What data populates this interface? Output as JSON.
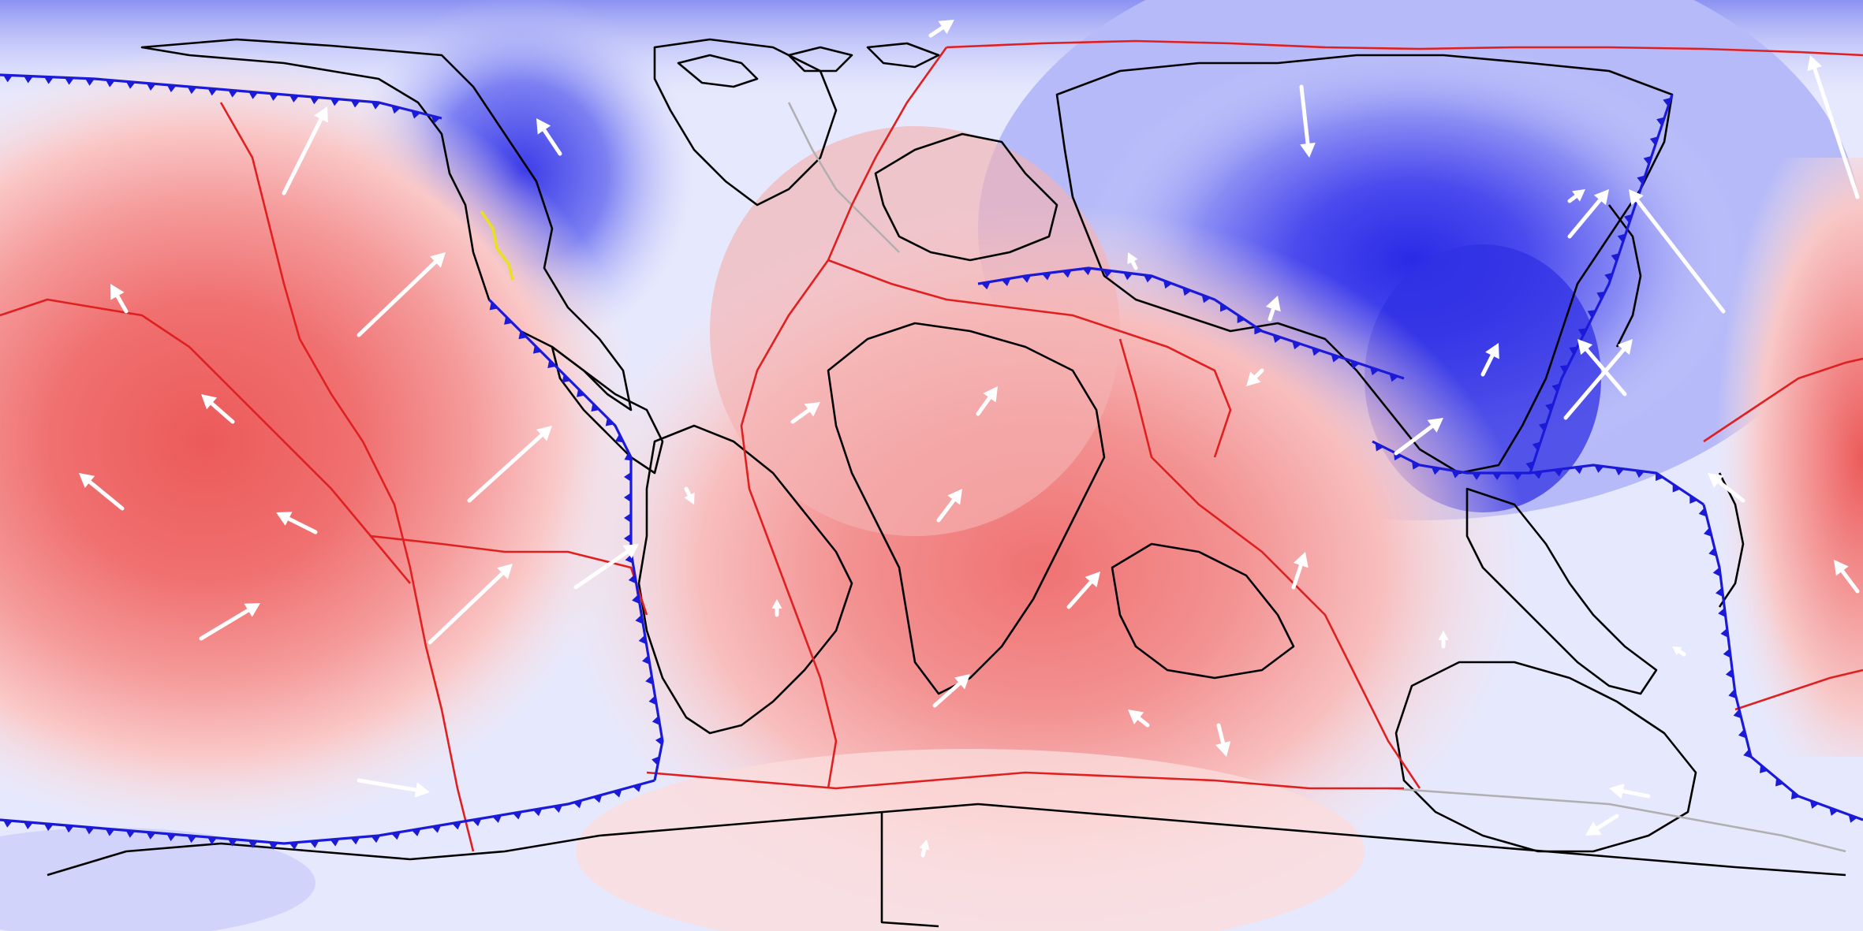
{
  "map": {
    "projection": "equirectangular",
    "field_scale": {
      "positive_color": "#f06060",
      "negative_color": "#2020e0",
      "neutral_color": "#f2f2ff"
    },
    "line_colors": {
      "coastline": "#000000",
      "ancient_margin": "#b0b0b0",
      "plate_boundary": "#e02020",
      "subduction_zone": "#1a1ad8",
      "rift_segment": "#e8e020"
    },
    "icons": [
      "plate-velocity-arrow-icon",
      "subduction-triangle-icon"
    ]
  }
}
